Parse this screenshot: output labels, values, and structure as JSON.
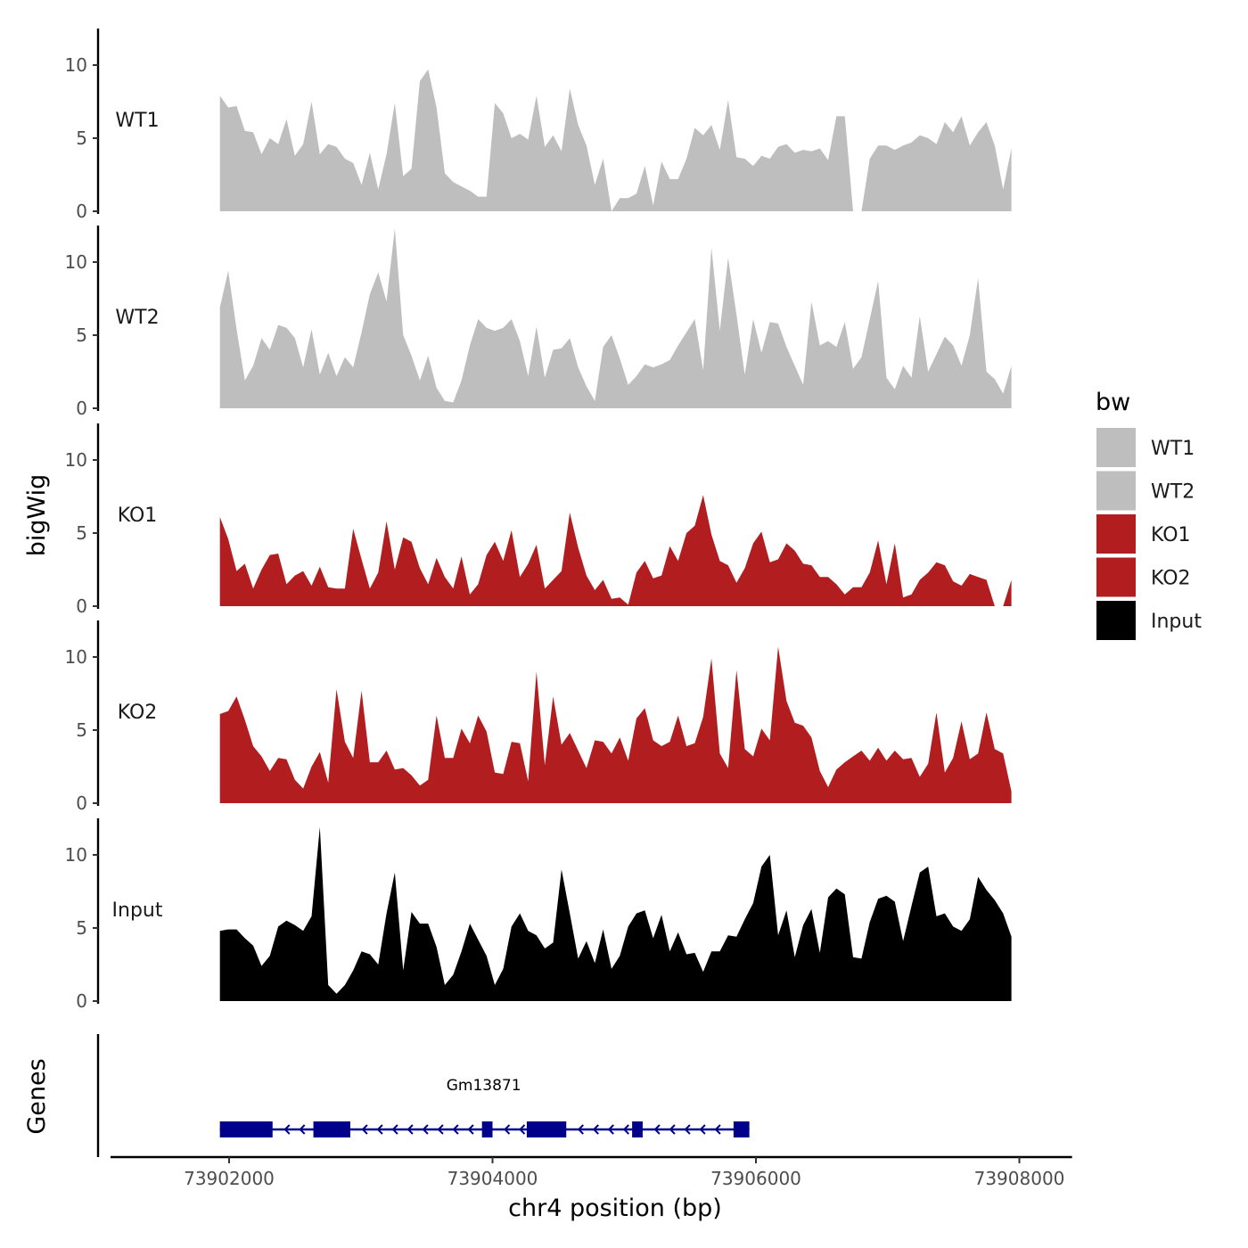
{
  "chart_data": {
    "type": "area",
    "subtype": "genome-browser-tracks",
    "ylabel": "bigWig",
    "xlabel": "chr4 position (bp)",
    "genes_label": "Genes",
    "ylim": [
      0,
      12.5
    ],
    "yticks": [
      "0",
      "5",
      "10"
    ],
    "xlim": [
      73901100,
      73908400
    ],
    "xticks": [
      {
        "value": 73902000,
        "label": "73902000"
      },
      {
        "value": 73904000,
        "label": "73904000"
      },
      {
        "value": 73906000,
        "label": "73906000"
      },
      {
        "value": 73908000,
        "label": "73908000"
      }
    ],
    "legend": {
      "title": "bw",
      "position": "right",
      "items": [
        {
          "label": "WT1",
          "color": "#bebebe"
        },
        {
          "label": "WT2",
          "color": "#bebebe"
        },
        {
          "label": "KO1",
          "color": "#b21e20"
        },
        {
          "label": "KO2",
          "color": "#b21e20"
        },
        {
          "label": "Input",
          "color": "#000000"
        }
      ]
    },
    "x_range": [
      73901930,
      73907940
    ],
    "tracks": [
      {
        "name": "WT1",
        "color": "#bebebe",
        "values": [
          7.9,
          7.1,
          7.2,
          5.5,
          5.4,
          3.9,
          5.0,
          4.6,
          6.3,
          3.8,
          4.6,
          7.5,
          3.9,
          4.6,
          4.4,
          3.6,
          3.3,
          1.8,
          4.0,
          1.5,
          3.9,
          7.4,
          2.4,
          2.9,
          8.9,
          9.7,
          7.1,
          2.6,
          2.0,
          1.7,
          1.4,
          1.0,
          1.0,
          7.4,
          6.7,
          5.0,
          5.3,
          4.9,
          7.9,
          4.4,
          5.2,
          4.1,
          8.4,
          5.9,
          4.5,
          1.8,
          3.6,
          0.0,
          0.9,
          0.9,
          1.2,
          3.1,
          0.4,
          3.4,
          2.2,
          2.2,
          3.6,
          5.7,
          5.2,
          5.9,
          4.2,
          7.6,
          3.7,
          3.6,
          3.1,
          3.8,
          3.6,
          4.4,
          4.6,
          4.0,
          4.2,
          4.1,
          4.3,
          3.5,
          6.5,
          6.5,
          0.0,
          0.0,
          3.6,
          4.5,
          4.5,
          4.2,
          4.5,
          4.7,
          5.2,
          5.0,
          4.6,
          6.1,
          5.4,
          6.5,
          4.5,
          5.4,
          6.1,
          4.5,
          1.5,
          4.3
        ]
      },
      {
        "name": "WT2",
        "color": "#bebebe",
        "values": [
          6.9,
          9.4,
          5.4,
          1.9,
          2.9,
          4.8,
          4.0,
          5.7,
          5.5,
          4.8,
          2.8,
          5.4,
          2.3,
          3.8,
          2.2,
          3.5,
          2.8,
          5.2,
          7.8,
          9.3,
          7.3,
          12.3,
          5.0,
          3.6,
          1.9,
          3.6,
          1.4,
          0.5,
          0.4,
          1.9,
          4.3,
          6.1,
          5.5,
          5.3,
          5.5,
          6.1,
          4.6,
          2.2,
          5.6,
          2.1,
          4.0,
          4.1,
          4.8,
          2.8,
          1.5,
          0.5,
          4.2,
          5.0,
          3.4,
          1.6,
          2.2,
          3.0,
          2.8,
          3.0,
          3.3,
          4.3,
          5.2,
          6.1,
          2.6,
          11.0,
          5.3,
          10.3,
          6.4,
          2.3,
          6.1,
          3.8,
          5.9,
          5.8,
          4.2,
          2.9,
          1.6,
          7.3,
          4.3,
          4.6,
          4.2,
          5.9,
          2.7,
          3.5,
          6.1,
          8.7,
          2.1,
          1.3,
          2.9,
          2.1,
          6.3,
          2.5,
          3.7,
          4.9,
          4.3,
          2.9,
          5.0,
          8.9,
          2.5,
          2.0,
          1.0,
          2.9
        ]
      },
      {
        "name": "KO1",
        "color": "#b21e20",
        "values": [
          6.1,
          4.6,
          2.4,
          2.9,
          1.2,
          2.5,
          3.5,
          3.6,
          1.5,
          2.1,
          2.4,
          1.4,
          2.7,
          1.3,
          1.2,
          1.2,
          5.3,
          3.2,
          1.2,
          2.3,
          5.8,
          2.5,
          4.7,
          4.4,
          2.6,
          1.5,
          3.3,
          2.0,
          1.2,
          3.4,
          0.8,
          1.5,
          3.5,
          4.4,
          3.1,
          5.2,
          2.0,
          2.9,
          4.2,
          1.2,
          1.8,
          2.4,
          6.4,
          4.0,
          2.1,
          1.1,
          1.8,
          0.5,
          0.6,
          0.1,
          2.3,
          3.1,
          1.9,
          2.1,
          4.1,
          3.1,
          5.0,
          5.5,
          7.6,
          4.9,
          3.1,
          2.8,
          1.6,
          2.6,
          4.3,
          5.1,
          3.0,
          3.2,
          4.3,
          3.8,
          2.9,
          2.8,
          2.0,
          2.0,
          1.5,
          0.8,
          1.3,
          1.3,
          2.3,
          4.5,
          1.5,
          4.3,
          0.6,
          0.8,
          1.8,
          2.3,
          3.0,
          2.8,
          1.7,
          1.4,
          2.2,
          2.0,
          1.8,
          0.0,
          0.0,
          1.8
        ]
      },
      {
        "name": "KO2",
        "color": "#b21e20",
        "values": [
          6.1,
          6.3,
          7.3,
          5.7,
          3.9,
          3.2,
          2.2,
          3.1,
          3.0,
          1.6,
          1.0,
          2.5,
          3.5,
          1.4,
          7.8,
          4.2,
          3.1,
          7.7,
          2.8,
          2.8,
          3.6,
          2.3,
          2.4,
          1.9,
          1.2,
          1.6,
          6.0,
          3.1,
          3.1,
          5.1,
          4.1,
          6.0,
          4.9,
          2.1,
          2.0,
          4.2,
          4.1,
          1.5,
          9.0,
          2.6,
          7.3,
          4.0,
          4.8,
          3.6,
          2.4,
          4.3,
          4.2,
          3.4,
          4.5,
          2.9,
          5.8,
          6.5,
          4.3,
          3.9,
          4.2,
          6.0,
          3.9,
          4.1,
          5.9,
          9.9,
          3.4,
          2.4,
          9.1,
          3.7,
          3.2,
          5.1,
          4.3,
          10.7,
          7.0,
          5.5,
          5.3,
          4.5,
          2.2,
          1.1,
          2.3,
          2.8,
          3.2,
          3.6,
          2.9,
          3.8,
          2.9,
          3.6,
          3.0,
          3.1,
          1.8,
          2.7,
          6.2,
          2.1,
          3.1,
          5.6,
          3.0,
          3.4,
          6.2,
          3.7,
          3.4,
          0.8
        ]
      },
      {
        "name": "Input",
        "color": "#000000",
        "values": [
          4.8,
          4.9,
          4.9,
          4.3,
          3.8,
          2.4,
          3.1,
          5.1,
          5.5,
          5.2,
          4.8,
          5.8,
          11.9,
          1.1,
          0.5,
          1.1,
          2.1,
          3.4,
          3.2,
          2.5,
          6.0,
          8.8,
          2.1,
          6.1,
          5.3,
          5.3,
          3.7,
          1.1,
          1.8,
          3.4,
          5.3,
          4.2,
          3.1,
          1.1,
          2.2,
          5.1,
          6.0,
          4.8,
          4.5,
          3.6,
          4.0,
          9.0,
          6.0,
          2.9,
          4.1,
          2.6,
          4.9,
          2.2,
          3.1,
          5.1,
          6.0,
          6.2,
          4.3,
          5.9,
          3.4,
          4.7,
          3.2,
          3.3,
          2.0,
          3.4,
          3.4,
          4.5,
          4.4,
          5.6,
          6.7,
          9.2,
          10.0,
          4.5,
          6.2,
          3.0,
          5.2,
          6.3,
          3.3,
          7.1,
          7.7,
          7.3,
          3.0,
          2.9,
          5.4,
          7.0,
          7.2,
          6.8,
          4.1,
          6.5,
          8.8,
          9.2,
          5.8,
          6.0,
          5.1,
          4.8,
          5.6,
          8.5,
          7.6,
          6.9,
          6.0,
          4.4
        ]
      }
    ],
    "genes": [
      {
        "name": "Gm13871",
        "strand": "-",
        "start": 73901930,
        "end": 73905950,
        "exons": [
          {
            "start": 73901930,
            "end": 73902330
          },
          {
            "start": 73902640,
            "end": 73902920
          },
          {
            "start": 73903920,
            "end": 73904000
          },
          {
            "start": 73904260,
            "end": 73904560
          },
          {
            "start": 73905060,
            "end": 73905140
          },
          {
            "start": 73905830,
            "end": 73905950
          }
        ]
      }
    ],
    "gene_color": "#00008b"
  }
}
